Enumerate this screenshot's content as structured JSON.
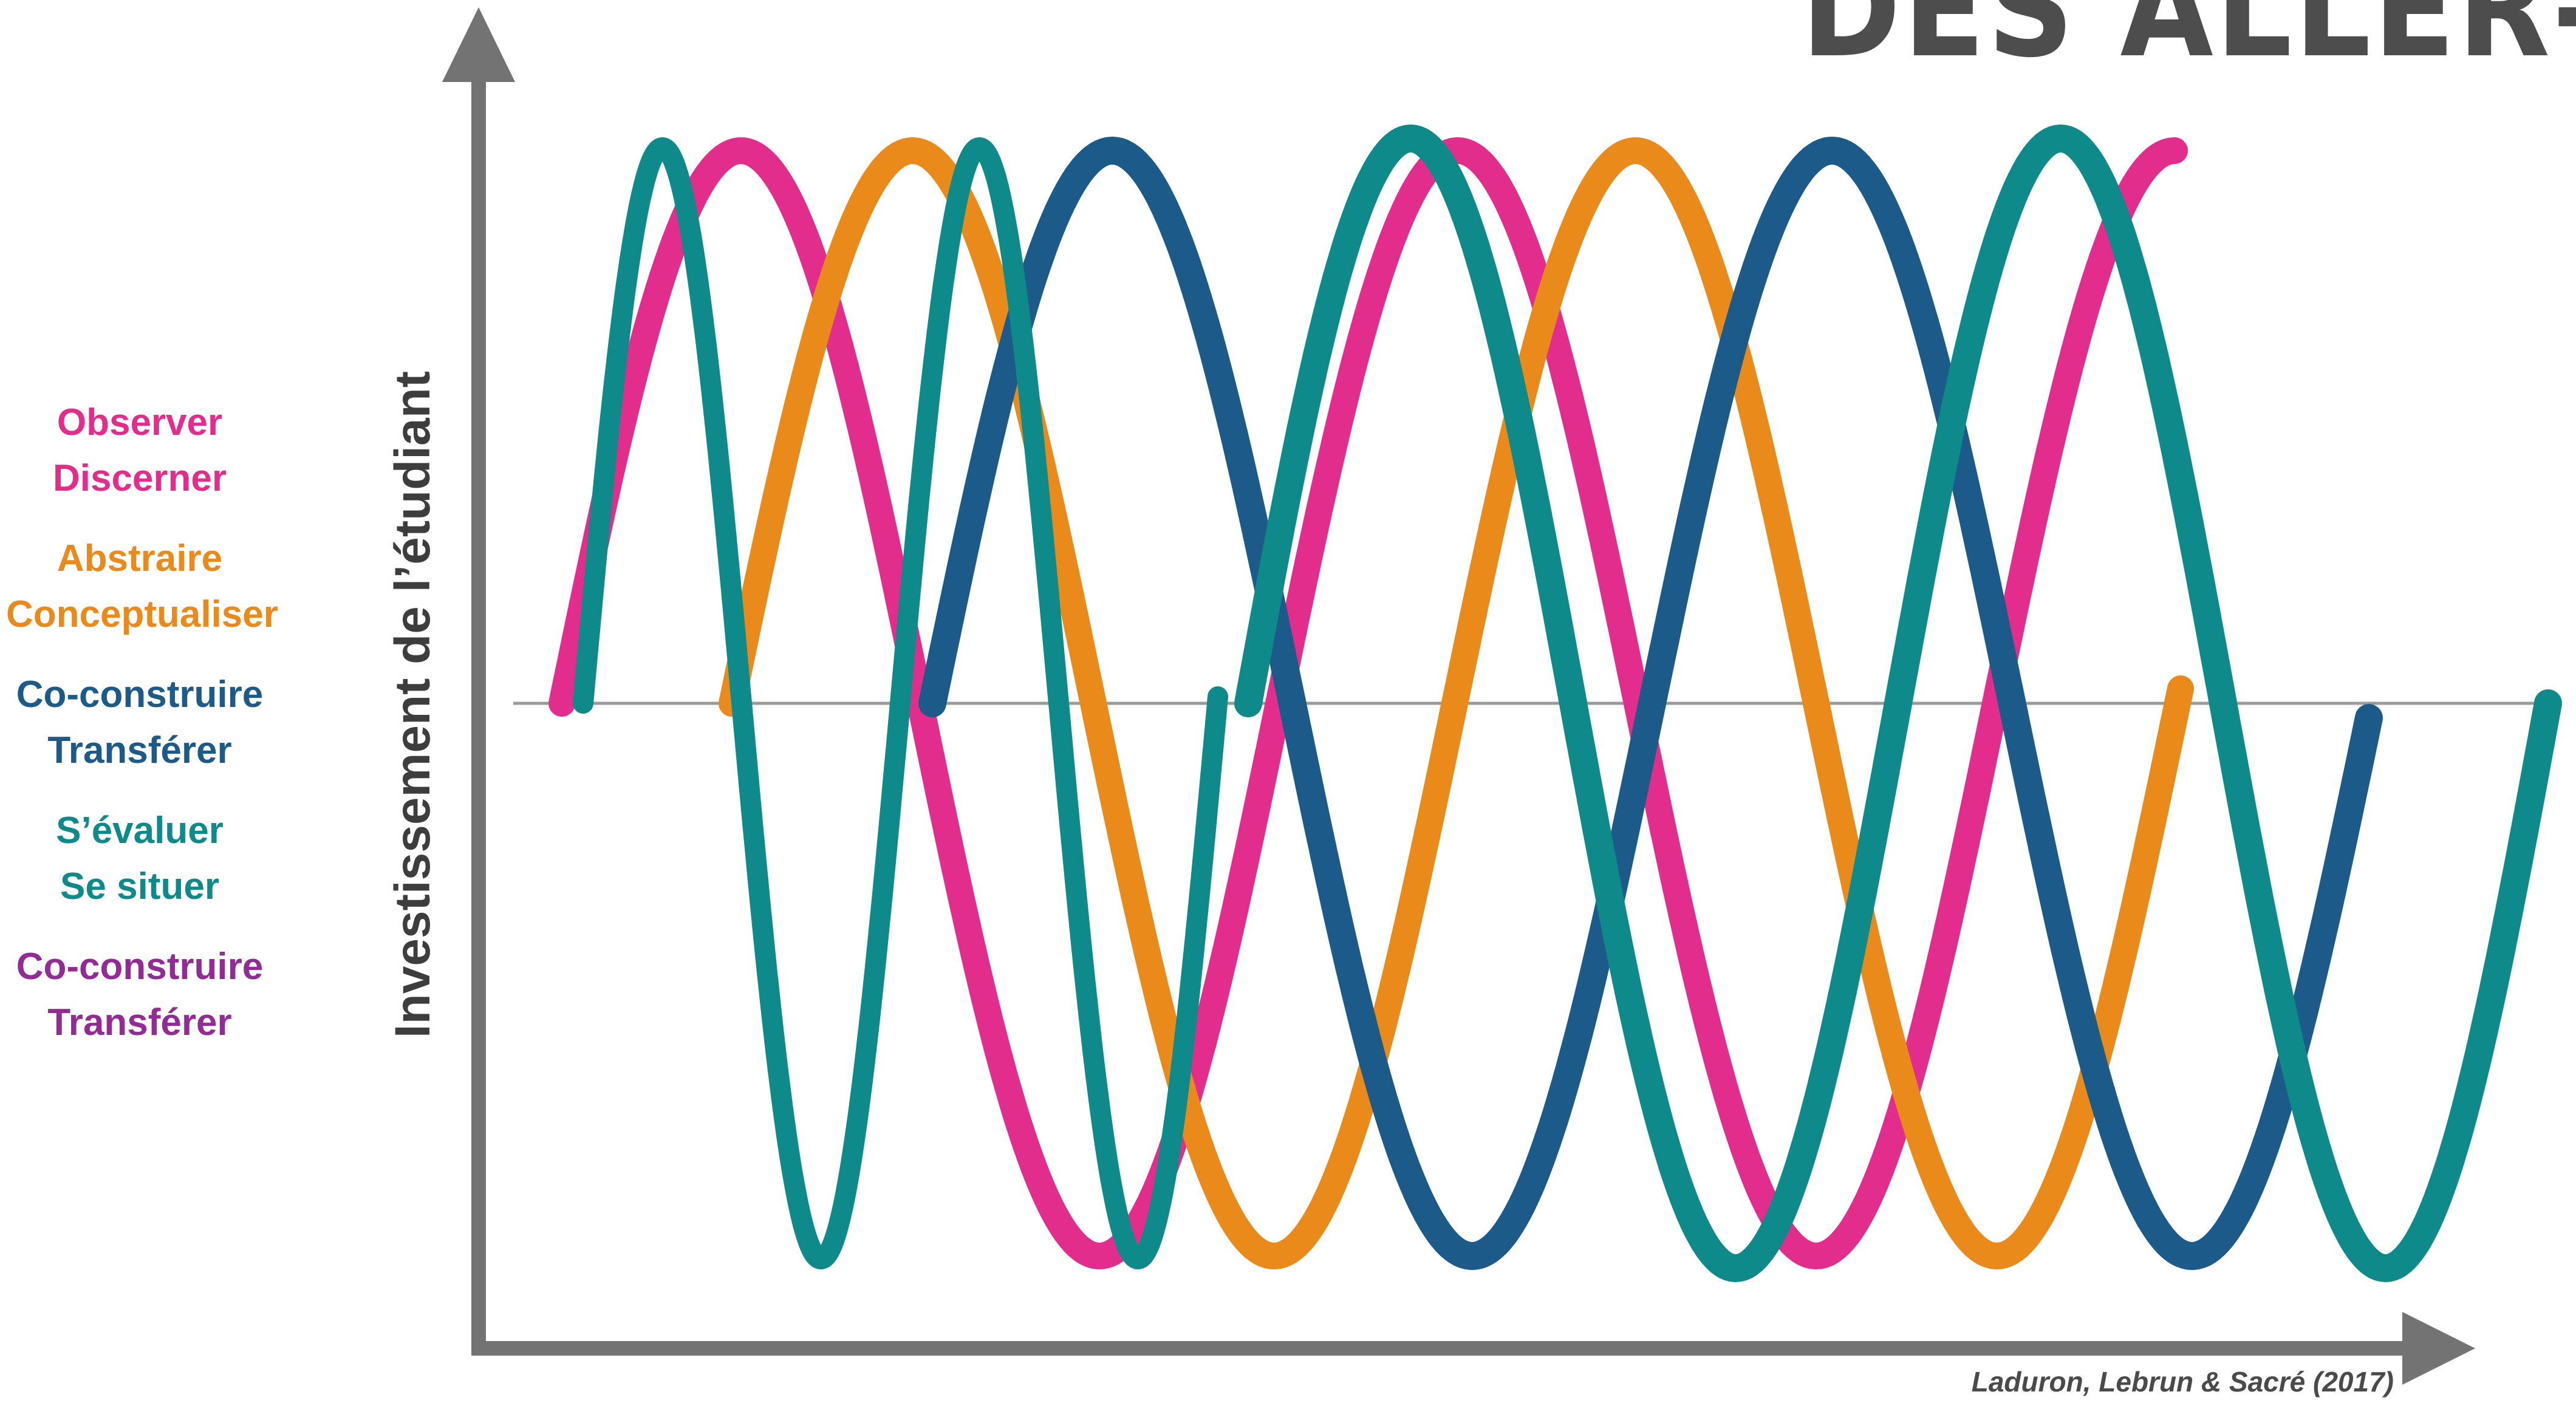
{
  "title": "DES ALLER-RE",
  "legend": [
    {
      "lines": [
        "Observer",
        "Discerner"
      ],
      "color": "#e32d8c"
    },
    {
      "lines": [
        "Abstraire",
        "Conceptualiser"
      ],
      "color": "#ea8a1b"
    },
    {
      "lines": [
        "Co-construire",
        "Transférer"
      ],
      "color": "#1b5a89"
    },
    {
      "lines": [
        "S’évaluer",
        "Se situer"
      ],
      "color": "#0e8a8a"
    },
    {
      "lines": [
        "Co-construire",
        "Transférer"
      ],
      "color": "#922b96"
    }
  ],
  "y_axis_label": "Investissement de l’étudiant",
  "citation": "Laduron, Lebrun & Sacré (2017)",
  "colors": {
    "axis": "#737373",
    "baseline": "#9a9a9a",
    "pink": "#e32d8c",
    "orange": "#ea8a1b",
    "navy": "#1b5a89",
    "teal": "#0e8a8a",
    "purple": "#922b96"
  }
}
